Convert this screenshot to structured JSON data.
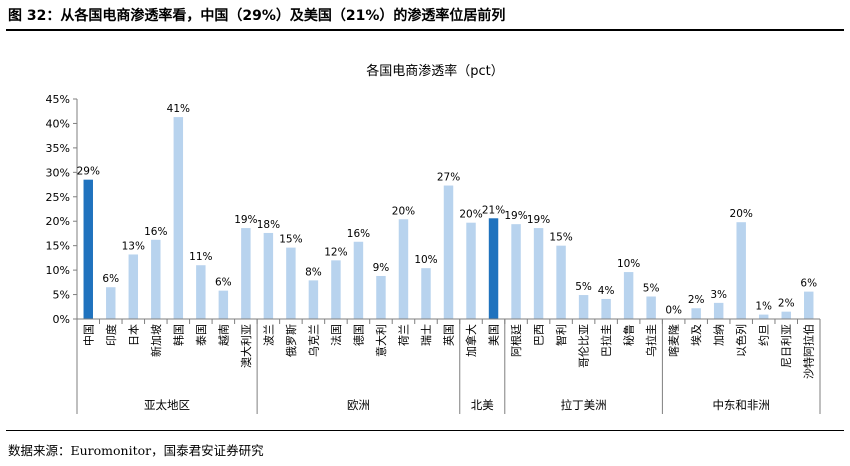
{
  "figure_title": "图 32：从各国电商渗透率看，中国（29%）及美国（21%）的渗透率位居前列",
  "source": "数据来源：Euromonitor，国泰君安证券研究",
  "colors": {
    "highlight": "#1f72be",
    "normal": "#b8d3ee",
    "axis": "#7f7f7f"
  },
  "chart_data": {
    "type": "bar",
    "title": "各国电商渗透率（pct）",
    "ylim": [
      0,
      45
    ],
    "yticks": [
      "0%",
      "5%",
      "10%",
      "15%",
      "20%",
      "25%",
      "30%",
      "35%",
      "40%",
      "45%"
    ],
    "ytick_values": [
      0,
      5,
      10,
      15,
      20,
      25,
      30,
      35,
      40,
      45
    ],
    "categories": [
      "中国",
      "印度",
      "日本",
      "新加坡",
      "韩国",
      "泰国",
      "越南",
      "澳大利亚",
      "波兰",
      "俄罗斯",
      "乌克兰",
      "法国",
      "德国",
      "意大利",
      "荷兰",
      "瑞士",
      "英国",
      "加拿大",
      "美国",
      "阿根廷",
      "巴西",
      "智利",
      "哥伦比亚",
      "巴拉圭",
      "秘鲁",
      "乌拉圭",
      "喀麦隆",
      "埃及",
      "加纳",
      "以色列",
      "约旦",
      "尼日利亚",
      "沙特阿拉伯"
    ],
    "values": [
      28.5,
      6.5,
      13.2,
      16.2,
      41.3,
      11.0,
      5.8,
      18.6,
      17.6,
      14.6,
      7.9,
      12.0,
      15.8,
      8.8,
      20.4,
      10.4,
      27.3,
      19.7,
      20.6,
      19.4,
      18.6,
      15.0,
      4.9,
      4.1,
      9.6,
      4.6,
      0.1,
      2.2,
      3.3,
      19.8,
      0.9,
      1.5,
      5.6
    ],
    "data_labels": [
      "29%",
      "6%",
      "13%",
      "16%",
      "41%",
      "11%",
      "6%",
      "19%",
      "18%",
      "15%",
      "8%",
      "12%",
      "16%",
      "9%",
      "20%",
      "10%",
      "27%",
      "20%",
      "21%",
      "19%",
      "19%",
      "15%",
      "5%",
      "4%",
      "10%",
      "5%",
      "0%",
      "2%",
      "3%",
      "20%",
      "1%",
      "2%",
      "6%"
    ],
    "highlight": [
      "中国",
      "美国"
    ],
    "groups": [
      {
        "name": "亚太地区",
        "start": 0,
        "end": 7
      },
      {
        "name": "欧洲",
        "start": 8,
        "end": 16
      },
      {
        "name": "北美",
        "start": 17,
        "end": 18
      },
      {
        "name": "拉丁美洲",
        "start": 19,
        "end": 25
      },
      {
        "name": "中东和非洲",
        "start": 26,
        "end": 32
      }
    ],
    "grid": false,
    "legend": "none"
  }
}
